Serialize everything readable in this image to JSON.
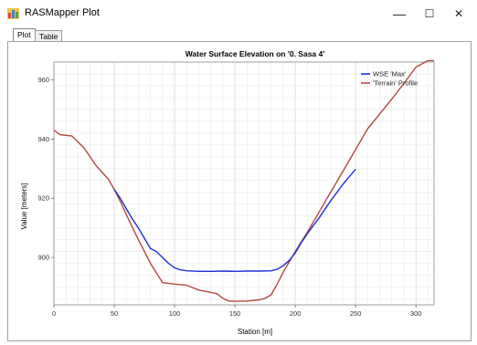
{
  "window": {
    "title": "RASMapper Plot",
    "controls": {
      "minimize": "—",
      "maximize": "☐",
      "close": "✕"
    }
  },
  "tabs": [
    {
      "label": "Plot",
      "active": true
    },
    {
      "label": "Table",
      "active": false
    }
  ],
  "chart_data": {
    "type": "line",
    "title": "Water Surface Elevation on  '0. Sasa 4'",
    "xlabel": "Station [m]",
    "ylabel": "Value [meters]",
    "xlim": [
      0,
      315
    ],
    "ylim": [
      884,
      966
    ],
    "x_ticks": [
      0,
      50,
      100,
      150,
      200,
      250,
      300
    ],
    "y_ticks": [
      900,
      920,
      940,
      960
    ],
    "grid": true,
    "legend_position": "top-right",
    "series": [
      {
        "name": "WSE 'Max'",
        "color": "#1f2fd6",
        "x": [
          50,
          55,
          60,
          65,
          70,
          75,
          80,
          85,
          90,
          95,
          100,
          105,
          110,
          120,
          130,
          140,
          150,
          160,
          170,
          180,
          185,
          190,
          195,
          200,
          205,
          210,
          220,
          230,
          240,
          250
        ],
        "y": [
          923,
          920,
          916.5,
          913,
          910,
          906.5,
          903,
          902,
          900,
          898,
          896.5,
          895.8,
          895.5,
          895.3,
          895.3,
          895.4,
          895.3,
          895.4,
          895.4,
          895.5,
          896,
          897.2,
          899,
          901.5,
          905,
          908,
          913.5,
          919.5,
          925,
          929.8
        ]
      },
      {
        "name": "'Terrain' Profile",
        "color": "#b04a40",
        "x": [
          0,
          5,
          15,
          25,
          35,
          45,
          50,
          55,
          60,
          70,
          80,
          90,
          100,
          105,
          110,
          120,
          125,
          135,
          140,
          145,
          150,
          160,
          170,
          175,
          180,
          185,
          190,
          200,
          210,
          220,
          230,
          240,
          250,
          260,
          270,
          280,
          290,
          300,
          310,
          315
        ],
        "y": [
          943,
          941.5,
          941,
          937,
          931,
          926.5,
          923,
          919,
          914.5,
          906,
          898,
          891.5,
          891,
          890.8,
          890.6,
          889,
          888.6,
          887.8,
          886.2,
          885.3,
          885.2,
          885.3,
          885.7,
          886.2,
          887.4,
          891,
          895,
          902,
          908.5,
          915.5,
          922.5,
          929.5,
          936.5,
          943.5,
          948.5,
          953.5,
          958.8,
          964.3,
          966.5,
          966.5
        ]
      }
    ]
  }
}
